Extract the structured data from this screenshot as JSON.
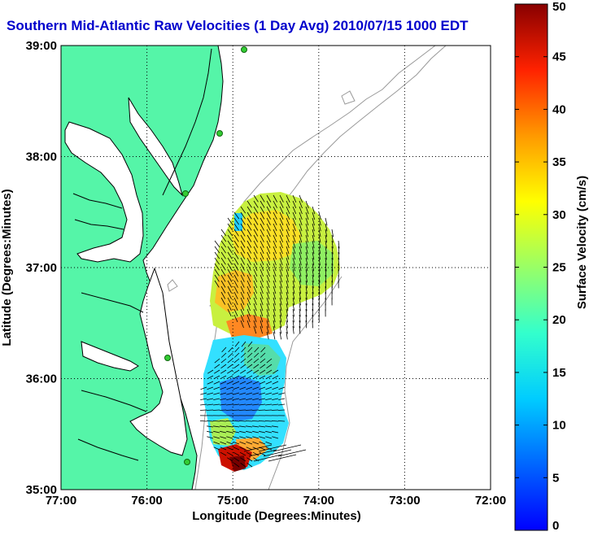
{
  "title": "Southern Mid-Atlantic Raw Velocities (1 Day Avg) 2010/07/15 1000 EDT",
  "map": {
    "xlabel": "Longitude (Degrees:Minutes)",
    "ylabel": "Latitude (Degrees:Minutes)",
    "x_ticks": [
      "77:00",
      "76:00",
      "75:00",
      "74:00",
      "73:00",
      "72:00"
    ],
    "y_ticks": [
      "39:00",
      "38:00",
      "37:00",
      "36:00",
      "35:00"
    ],
    "lon_range": [
      -77,
      -72
    ],
    "lat_range": [
      35,
      39
    ],
    "grid": true,
    "land_color": "#55f5a8",
    "coast_color": "#000000",
    "bathymetry_color": "#999999",
    "station_color": "#33cc33"
  },
  "colorbar": {
    "label": "Surface Velocity (cm/s)",
    "ticks": [
      "0",
      "5",
      "10",
      "15",
      "20",
      "25",
      "30",
      "35",
      "40",
      "45",
      "50"
    ],
    "min": 0,
    "max": 50,
    "colormap": "jet"
  }
}
